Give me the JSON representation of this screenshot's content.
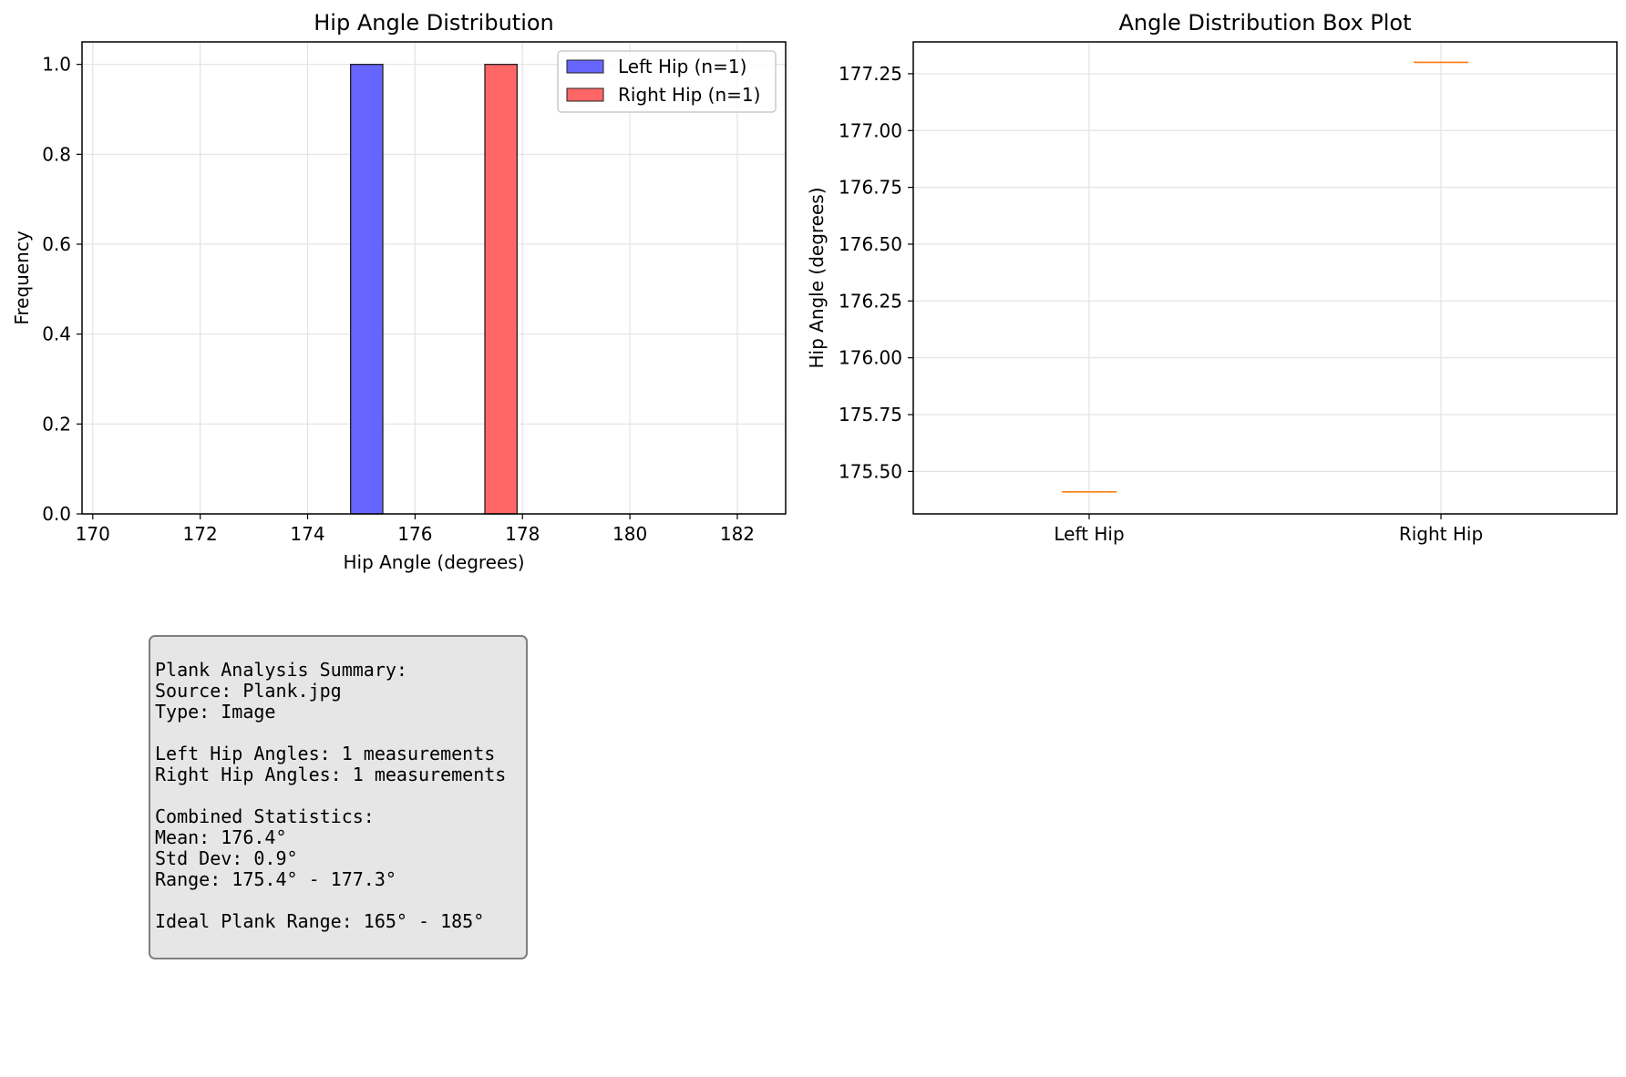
{
  "chart_data": [
    {
      "type": "bar",
      "subtype": "histogram",
      "title": "Hip Angle Distribution",
      "xlabel": "Hip Angle (degrees)",
      "ylabel": "Frequency",
      "xlim": [
        169.8,
        182.9
      ],
      "ylim": [
        0,
        1.05
      ],
      "xticks": [
        170,
        172,
        174,
        176,
        178,
        180,
        182
      ],
      "yticks": [
        0.0,
        0.2,
        0.4,
        0.6,
        0.8,
        1.0
      ],
      "ytick_labels": [
        "0.0",
        "0.2",
        "0.4",
        "0.6",
        "0.8",
        "1.0"
      ],
      "grid": true,
      "legend_position": "top-right",
      "series": [
        {
          "name": "Left Hip (n=1)",
          "bins": [
            [
              174.8,
              175.4
            ]
          ],
          "values": [
            1
          ],
          "color": "#6666ff"
        },
        {
          "name": "Right Hip (n=1)",
          "bins": [
            [
              177.3,
              177.9
            ]
          ],
          "values": [
            1
          ],
          "color": "#ff6666"
        }
      ]
    },
    {
      "type": "box",
      "title": "Angle Distribution Box Plot",
      "xlabel": "",
      "ylabel": "Hip Angle (degrees)",
      "ylim": [
        175.313,
        177.39
      ],
      "yticks": [
        175.5,
        175.75,
        176.0,
        176.25,
        176.5,
        176.75,
        177.0,
        177.25
      ],
      "ytick_labels": [
        "175.50",
        "175.75",
        "176.00",
        "176.25",
        "176.50",
        "176.75",
        "177.00",
        "177.25"
      ],
      "grid": true,
      "categories": [
        "Left Hip",
        "Right Hip"
      ],
      "values": [
        175.41,
        177.3
      ],
      "median_color": "#ff7f0e"
    }
  ],
  "summary": {
    "lines": [
      "Plank Analysis Summary:",
      "Source: Plank.jpg",
      "Type: Image",
      "",
      "Left Hip Angles: 1 measurements",
      "Right Hip Angles: 1 measurements",
      "",
      "Combined Statistics:",
      "Mean: 176.4°",
      "Std Dev: 0.9°",
      "Range: 175.4° - 177.3°",
      "",
      "Ideal Plank Range: 165° - 185°"
    ]
  }
}
